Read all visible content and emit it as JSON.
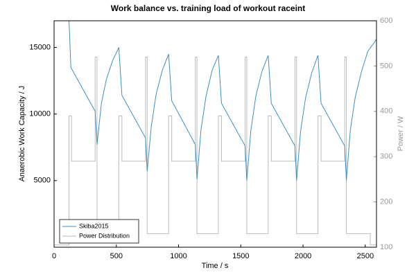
{
  "chart_data": {
    "type": "line",
    "title": "Work balance vs. training load of workout  raceint",
    "x_label": "Time / s",
    "y_label": "Anaerobic Work Capacity / J",
    "y2_label": "Power / W",
    "xlim": [
      0,
      2590
    ],
    "xticks": [
      0,
      500,
      1000,
      1500,
      2000,
      2500
    ],
    "ylim": [
      0,
      17000
    ],
    "yticks": [
      5000,
      10000,
      15000
    ],
    "y2lim": [
      100,
      600
    ],
    "y2ticks": [
      100,
      200,
      300,
      400,
      500,
      600
    ],
    "legend": "lower left",
    "series": [
      {
        "name": "Skiba2015",
        "color": "#3b8fc4",
        "x": [
          0,
          120,
          135,
          330,
          345,
          380,
          420,
          470,
          520,
          545,
          735,
          748,
          780,
          820,
          870,
          920,
          945,
          1135,
          1148,
          1180,
          1220,
          1270,
          1320,
          1345,
          1535,
          1548,
          1580,
          1620,
          1670,
          1720,
          1745,
          1935,
          1948,
          1980,
          2020,
          2070,
          2120,
          2145,
          2335,
          2348,
          2380,
          2420,
          2470,
          2520,
          2590
        ],
        "values": [
          17000,
          17000,
          13500,
          10200,
          7700,
          10800,
          12600,
          14000,
          15000,
          11400,
          8200,
          5700,
          9000,
          11500,
          13300,
          14500,
          11000,
          7700,
          5100,
          8800,
          11300,
          13300,
          14400,
          10800,
          7600,
          5000,
          8700,
          11300,
          13200,
          14400,
          10800,
          7600,
          5000,
          8700,
          11200,
          13100,
          14400,
          10800,
          7600,
          5000,
          8800,
          11300,
          13200,
          14700,
          15600
        ]
      },
      {
        "name": "Power Distribution",
        "color": "#bbbbbb",
        "axis": "y2",
        "x": [
          0,
          120,
          120,
          140,
          140,
          330,
          330,
          345,
          345,
          520,
          520,
          545,
          545,
          735,
          735,
          748,
          748,
          920,
          920,
          945,
          945,
          1135,
          1135,
          1148,
          1148,
          1320,
          1320,
          1345,
          1345,
          1535,
          1535,
          1548,
          1548,
          1720,
          1720,
          1745,
          1745,
          1935,
          1935,
          1948,
          1948,
          2120,
          2120,
          2145,
          2145,
          2335,
          2335,
          2348,
          2348,
          2540,
          2540,
          2590
        ],
        "values": [
          105,
          105,
          390,
          390,
          290,
          290,
          520,
          520,
          130,
          130,
          390,
          390,
          290,
          290,
          520,
          520,
          130,
          130,
          390,
          390,
          290,
          290,
          520,
          520,
          130,
          130,
          390,
          390,
          290,
          290,
          520,
          520,
          130,
          130,
          390,
          390,
          290,
          290,
          520,
          520,
          130,
          130,
          390,
          390,
          290,
          290,
          520,
          520,
          130,
          130,
          105,
          105
        ]
      }
    ]
  }
}
